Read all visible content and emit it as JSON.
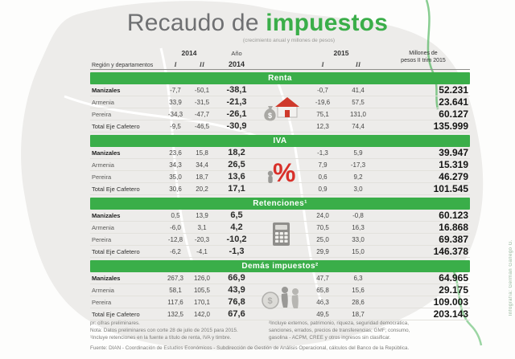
{
  "title": {
    "gray_part": "Recaudo de",
    "green_part": "impuestos",
    "subtitle": "(crecimiento anual y millones de pesos)"
  },
  "table_header": {
    "region": "Región y departamentos",
    "y2014": "2014",
    "y2015": "2015",
    "roman_i": "I",
    "roman_ii": "II",
    "anio": "Año",
    "anio_year": "2014",
    "millones_line1": "Millones de",
    "millones_line2": "pesos II trim 2015"
  },
  "chart_data": {
    "type": "table",
    "title": "Recaudo de impuestos",
    "subtitle": "(crecimiento anual y millones de pesos)",
    "columns": [
      "Región y departamentos",
      "2014 I",
      "2014 II",
      "Año 2014",
      "2015 I",
      "2015 II",
      "Millones de pesos II trim 2015"
    ],
    "sections": [
      {
        "name": "Renta",
        "icon": "house-money-icon",
        "rows": [
          {
            "label": "Manizales",
            "cells": [
              "-7,7",
              "-50,1",
              "-38,1",
              "-0,7",
              "41,4",
              "52.231"
            ]
          },
          {
            "label": "Armenia",
            "cells": [
              "33,9",
              "-31,5",
              "-21,3",
              "-19,6",
              "57,5",
              "23.641"
            ]
          },
          {
            "label": "Pereira",
            "cells": [
              "-34,3",
              "-47,7",
              "-26,1",
              "75,1",
              "131,0",
              "60.127"
            ]
          },
          {
            "label": "Total Eje Cafetero",
            "cells": [
              "-9,5",
              "-46,5",
              "-30,9",
              "12,3",
              "74,4",
              "135.999"
            ]
          }
        ]
      },
      {
        "name": "IVA",
        "icon": "percent-icon",
        "rows": [
          {
            "label": "Manizales",
            "cells": [
              "23,6",
              "15,8",
              "18,2",
              "-1,3",
              "5,9",
              "39.947"
            ]
          },
          {
            "label": "Armenia",
            "cells": [
              "34,3",
              "34,4",
              "26,5",
              "7,9",
              "-17,3",
              "15.319"
            ]
          },
          {
            "label": "Pereira",
            "cells": [
              "35,0",
              "18,7",
              "13,6",
              "0,6",
              "9,2",
              "46.279"
            ]
          },
          {
            "label": "Total Eje Cafetero",
            "cells": [
              "30,6",
              "20,2",
              "17,1",
              "0,9",
              "3,0",
              "101.545"
            ]
          }
        ]
      },
      {
        "name": "Retenciones¹",
        "icon": "calculator-icon",
        "rows": [
          {
            "label": "Manizales",
            "cells": [
              "0,5",
              "13,9",
              "6,5",
              "24,0",
              "-0,8",
              "60.123"
            ]
          },
          {
            "label": "Armenia",
            "cells": [
              "-6,0",
              "3,1",
              "4,2",
              "70,5",
              "16,3",
              "16.868"
            ]
          },
          {
            "label": "Pereira",
            "cells": [
              "-12,8",
              "-20,3",
              "-10,2",
              "25,0",
              "33,0",
              "69.387"
            ]
          },
          {
            "label": "Total Eje Cafetero",
            "cells": [
              "-6,2",
              "-4,1",
              "-1,3",
              "29,9",
              "15,0",
              "146.378"
            ]
          }
        ]
      },
      {
        "name": "Demás impuestos²",
        "icon": "people-coin-icon",
        "rows": [
          {
            "label": "Manizales",
            "cells": [
              "267,3",
              "126,0",
              "66,9",
              "47,7",
              "6,3",
              "64.965"
            ]
          },
          {
            "label": "Armenia",
            "cells": [
              "58,1",
              "105,5",
              "43,9",
              "65,8",
              "15,6",
              "29.175"
            ]
          },
          {
            "label": "Pereira",
            "cells": [
              "117,6",
              "170,1",
              "76,8",
              "46,3",
              "28,6",
              "109.003"
            ]
          },
          {
            "label": "Total Eje Cafetero",
            "cells": [
              "132,5",
              "142,0",
              "67,6",
              "49,5",
              "18,7",
              "203.143"
            ]
          }
        ]
      }
    ]
  },
  "footnotes": {
    "pr": "pr: cifras preliminares.",
    "nota": "Nota: Datos preliminares con corte 28 de julio de 2015 para 2015.",
    "nota1": "¹Incluye retenciones en la fuente a título de renta, IVA y timbre.",
    "nota2": "²Incluye externos, patrimonio, riqueza, seguridad democrática, sanciones, errados, precios de transferencias; GMF; consumo, gasolina - ACPM, CREE y otros ingresos sin clasificar.",
    "fuente": "Fuente: DIAN - Coordinación de Estudios Económicos - Subdirección de Gestión de Análisis Operacional, cálculos del Banco de la República."
  },
  "credit": "Infografía: Germán Gallego G.",
  "colors": {
    "green": "#3aae49",
    "red": "#d03a2c",
    "title_gray": "#6f7072"
  }
}
